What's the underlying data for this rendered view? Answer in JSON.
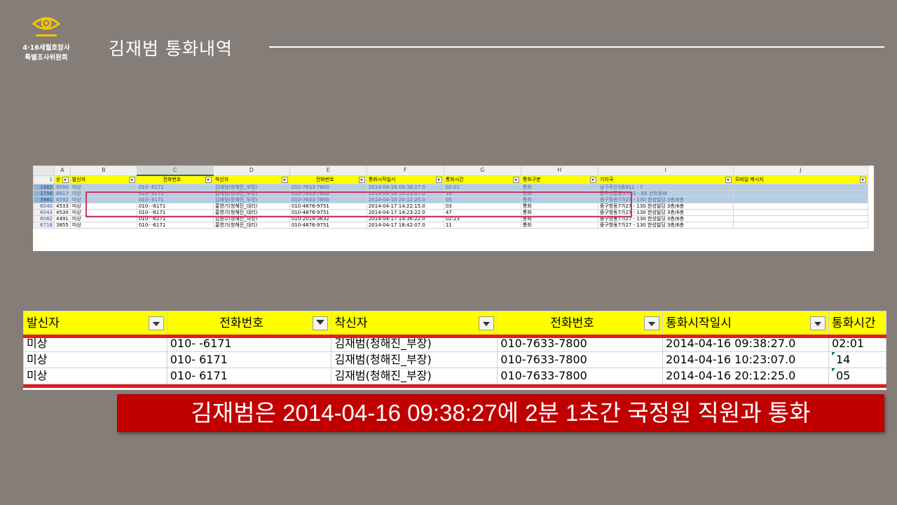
{
  "logo": {
    "line1": "4·16세월호참사",
    "line2": "특별조사위원회",
    "color": "#f5c400"
  },
  "title": "김재범 통화내역",
  "sheet": {
    "col_letters": [
      "A",
      "B",
      "C",
      "D",
      "E",
      "F",
      "G",
      "H",
      "I",
      "J"
    ],
    "header_rownum": "1",
    "headers": [
      "순",
      "발신자",
      "전화번호",
      "착신자",
      "전화번호",
      "통화시작일시",
      "통화시간",
      "통화구분",
      "기지국",
      "모바일 메시지"
    ],
    "rows": [
      {
        "rn": "1483",
        "cells": [
          "9090",
          "미상",
          "010-      6171",
          "김재범(청해진_부장)",
          "010-7633-7800",
          "2014-04-16 09:38:27.0",
          "02:01",
          "통화",
          "남구주안3동811 - 7",
          ""
        ]
      },
      {
        "rn": "1756",
        "cells": [
          "8817",
          "미상",
          "010-      6171",
          "김재범(청해진_부장)",
          "010-7633-7800",
          "2014-04-16 10:23:07.0",
          "14",
          "통화",
          "중구신흥동3가31 - 65 선화동W",
          ""
        ]
      },
      {
        "rn": "3981",
        "cells": [
          "6592",
          "미상",
          "010-      6171",
          "김재범(청해진_부장)",
          "010-7633-7800",
          "2014-04-16 20:12:25.0",
          "05",
          "통화",
          "중구항동7가27 - 130 한성빌딩 3층/6층",
          ""
        ]
      },
      {
        "rn": "6040",
        "cells": [
          "4533",
          "미상",
          "010-      -6171",
          "홍영기(청해진_대리)",
          "010-4876-9751",
          "2014-04-17 14:22:15.0",
          "03",
          "통화",
          "중구항동7가27 - 130 한성빌딩 3층/6층",
          ""
        ]
      },
      {
        "rn": "6043",
        "cells": [
          "4530",
          "미상",
          "010-      -6171",
          "홍영기(청해진_대리)",
          "010-4876-9751",
          "2014-04-17 14:23:22.0",
          "47",
          "통화",
          "중구항동7가27 - 130 한성빌딩 3층/6층",
          ""
        ]
      },
      {
        "rn": "6082",
        "cells": [
          "4491",
          "미상",
          "010-      -6171",
          "김정수(청해진_차장)",
          "010-2014-3632",
          "2014-04-17 14:36:22.0",
          "02:23",
          "통화",
          "중구항동7가27 - 130 한성빌딩 3층/6층",
          ""
        ]
      },
      {
        "rn": "6718",
        "cells": [
          "3855",
          "미상",
          "010-      -6171",
          "홍영기(청해진_대리)",
          "010-4876-9751",
          "2014-04-17 18:42:07.0",
          "11",
          "통화",
          "중구항동7가27 - 130 한성빌딩 3층/6층",
          ""
        ]
      }
    ]
  },
  "zoom": {
    "headers": [
      "발신자",
      "전화번호",
      "착신자",
      "전화번호",
      "통화시작일시",
      "통화시간"
    ],
    "rows": [
      [
        "미상",
        "010-      -6171",
        "김재범(청해진_부장)",
        "010-7633-7800",
        "2014-04-16 09:38:27.0",
        "02:01"
      ],
      [
        "미상",
        "010-       6171",
        "김재범(청해진_부장)",
        "010-7633-7800",
        "2014-04-16 10:23:07.0",
        "14"
      ],
      [
        "미상",
        "010-       6171",
        "김재범(청해진_부장)",
        "010-7633-7800",
        "2014-04-16 20:12:25.0",
        "05"
      ]
    ]
  },
  "caption": "김재범은  2014-04-16  09:38:27에  2분  1초간  국정원  직원과  통화",
  "colors": {
    "background": "#857d78",
    "header_yellow": "#ffff00",
    "highlight_red": "#e31b23",
    "caption_bg": "#c00000",
    "selection_blue": "#b6cde6"
  }
}
